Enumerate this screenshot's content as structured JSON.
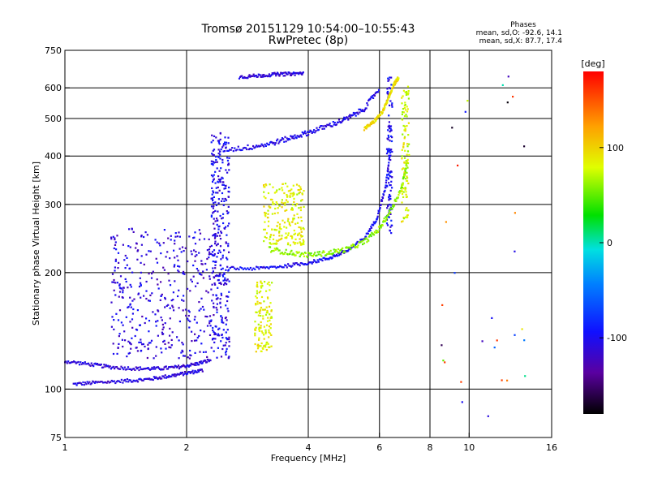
{
  "chart_data": {
    "type": "scatter",
    "title": "Tromsø 20151129 10:54:00–10:55:43",
    "subtitle": "RwPretec (8p)",
    "stats": {
      "heading": "Phases",
      "line_o": "mean, sd,O: -92.6, 14.1",
      "line_x": "mean, sd,X: 87.7, 17.4"
    },
    "xlabel": "Frequency [MHz]",
    "ylabel": "Stationary phase Virtual Height [km]",
    "x_scale": "log",
    "y_scale": "log",
    "xlim": [
      1,
      16
    ],
    "ylim": [
      75,
      750
    ],
    "grid": true,
    "x_ticks": [
      {
        "value": 1,
        "label": "1"
      },
      {
        "value": 2,
        "label": "2"
      },
      {
        "value": 4,
        "label": "4"
      },
      {
        "value": 6,
        "label": "6"
      },
      {
        "value": 8,
        "label": "8"
      },
      {
        "value": 10,
        "label": "10"
      },
      {
        "value": 16,
        "label": "16"
      }
    ],
    "x_grid": [
      2,
      4,
      6,
      8,
      10
    ],
    "y_ticks": [
      {
        "value": 75,
        "label": "75"
      },
      {
        "value": 100,
        "label": "100"
      },
      {
        "value": 200,
        "label": "200"
      },
      {
        "value": 300,
        "label": "300"
      },
      {
        "value": 400,
        "label": "400"
      },
      {
        "value": 500,
        "label": "500"
      },
      {
        "value": 600,
        "label": "600"
      },
      {
        "value": 750,
        "label": "750"
      }
    ],
    "y_grid": [
      100,
      200,
      300,
      400,
      500,
      600
    ],
    "colorbar": {
      "label": "[deg]",
      "min": -180,
      "max": 180,
      "ticks": [
        {
          "value": 100,
          "label": "100"
        },
        {
          "value": 0,
          "label": "0"
        },
        {
          "value": -100,
          "label": "-100"
        }
      ]
    },
    "traces": [
      {
        "name": "o-E-low",
        "kind": "curve",
        "x": [
          1.05,
          1.2,
          1.4,
          1.6,
          1.8,
          2.0,
          2.2
        ],
        "y": [
          103,
          104,
          105,
          106,
          108,
          110,
          112
        ],
        "phase": -110,
        "spread": 0.01
      },
      {
        "name": "o-E-mid",
        "kind": "curve",
        "x": [
          1.0,
          1.15,
          1.3,
          1.5,
          1.7,
          1.9,
          2.1,
          2.3
        ],
        "y": [
          118,
          116,
          114,
          113,
          113,
          114,
          116,
          119
        ],
        "phase": -110,
        "spread": 0.01
      },
      {
        "name": "o-Es-band",
        "kind": "cloud",
        "x": [
          1.3,
          2.4
        ],
        "y": [
          120,
          260
        ],
        "phase": -110,
        "count": 420
      },
      {
        "name": "o-F-column",
        "kind": "cloud",
        "x": [
          2.3,
          2.55
        ],
        "y": [
          120,
          460
        ],
        "phase": -105,
        "count": 300
      },
      {
        "name": "o-F1-trace",
        "kind": "curve",
        "x": [
          2.5,
          3.0,
          3.5,
          4.0,
          4.5,
          5.0,
          5.5,
          5.9,
          6.2,
          6.4
        ],
        "y": [
          205,
          205,
          208,
          212,
          218,
          228,
          245,
          275,
          330,
          420
        ],
        "phase": -100,
        "spread": 0.01
      },
      {
        "name": "o-F2-top",
        "kind": "curve",
        "x": [
          2.4,
          2.8,
          3.2,
          3.6,
          4.0,
          4.5,
          5.0,
          5.5,
          6.0
        ],
        "y": [
          415,
          420,
          430,
          445,
          460,
          480,
          500,
          530,
          600
        ],
        "phase": -105,
        "spread": 0.015
      },
      {
        "name": "o-F2-vertical",
        "kind": "cloud",
        "x": [
          6.25,
          6.45
        ],
        "y": [
          250,
          640
        ],
        "phase": -100,
        "count": 110
      },
      {
        "name": "o-top-stray",
        "kind": "curve",
        "x": [
          2.7,
          3.0,
          3.3,
          3.6,
          3.9
        ],
        "y": [
          640,
          645,
          650,
          652,
          655
        ],
        "phase": -110,
        "spread": 0.01
      },
      {
        "name": "x-F-trace",
        "kind": "curve",
        "x": [
          3.2,
          3.6,
          4.0,
          4.5,
          5.0,
          5.5,
          6.0,
          6.4,
          6.8,
          7.0
        ],
        "y": [
          230,
          225,
          222,
          225,
          230,
          240,
          260,
          290,
          330,
          380
        ],
        "phase": 60,
        "spread": 0.015
      },
      {
        "name": "x-F-vertical",
        "kind": "cloud",
        "x": [
          6.8,
          7.1
        ],
        "y": [
          270,
          610
        ],
        "phase": 80,
        "count": 110
      },
      {
        "name": "x-F-cloud",
        "kind": "cloud",
        "x": [
          3.1,
          3.9
        ],
        "y": [
          235,
          340
        ],
        "phase": 85,
        "count": 210
      },
      {
        "name": "x-E-cloud",
        "kind": "cloud",
        "x": [
          2.95,
          3.25
        ],
        "y": [
          125,
          190
        ],
        "phase": 85,
        "count": 120
      },
      {
        "name": "x-F2-upper",
        "kind": "curve",
        "x": [
          5.5,
          5.8,
          6.1,
          6.3,
          6.5,
          6.7
        ],
        "y": [
          470,
          490,
          520,
          560,
          610,
          640
        ],
        "phase": 95,
        "spread": 0.01
      },
      {
        "name": "stray-far",
        "kind": "cloud",
        "x": [
          8.5,
          14.0
        ],
        "y": [
          80,
          680
        ],
        "phase": 0,
        "count": 30
      }
    ]
  }
}
